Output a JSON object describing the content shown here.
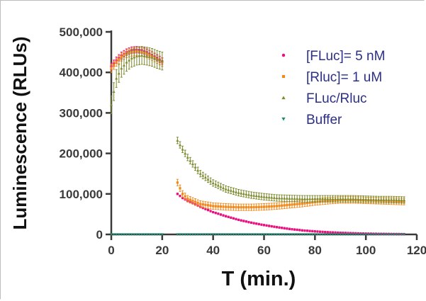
{
  "chart_data": {
    "type": "scatter",
    "title": "",
    "xlabel": "T (min.)",
    "ylabel": "Luminescence (RLUs)",
    "xlim": [
      0,
      120
    ],
    "ylim": [
      0,
      500000
    ],
    "x_ticks": [
      0,
      20,
      40,
      60,
      80,
      100,
      120
    ],
    "x_tick_labels": [
      "0",
      "20",
      "40",
      "60",
      "80",
      "100",
      "120"
    ],
    "y_ticks": [
      0,
      100000,
      200000,
      300000,
      400000,
      500000
    ],
    "y_tick_labels": [
      "0",
      "100,000",
      "200,000",
      "300,000",
      "400,000",
      "500,000"
    ],
    "grid": false,
    "legend_position": "top-right",
    "series": [
      {
        "name": "[FLuc]= 5 nM",
        "color": "#e8117f",
        "marker": "circle",
        "segments": [
          {
            "x": [
              0,
              2,
              4,
              6,
              8,
              10,
              12,
              14,
              16,
              18,
              20
            ],
            "y": [
              415000,
              430000,
              442000,
              450000,
              455000,
              456000,
              455000,
              450000,
              443000,
              436000,
              428000
            ],
            "err": 8000
          },
          {
            "x": [
              26,
              28,
              30,
              35,
              40,
              45,
              50,
              55,
              60,
              65,
              70,
              75,
              80,
              85,
              90,
              95,
              100,
              105,
              110,
              115
            ],
            "y": [
              100000,
              90000,
              83000,
              68000,
              55000,
              45000,
              36000,
              29000,
              23000,
              18000,
              13500,
              10000,
              7500,
              5500,
              4000,
              3000,
              2000,
              1500,
              1000,
              800
            ],
            "err": 2000
          }
        ]
      },
      {
        "name": "[Rluc]= 1 uM",
        "color": "#f08a1c",
        "marker": "square",
        "segments": [
          {
            "x": [
              0,
              2,
              4,
              6,
              8,
              10,
              12,
              14,
              16,
              18,
              20
            ],
            "y": [
              410000,
              425000,
              438000,
              446000,
              450000,
              452000,
              450000,
              446000,
              440000,
              432000,
              425000
            ],
            "err": 10000
          },
          {
            "x": [
              26,
              28,
              30,
              35,
              40,
              45,
              50,
              55,
              60,
              65,
              70,
              75,
              80,
              85,
              90,
              95,
              100,
              105,
              110,
              115
            ],
            "y": [
              128000,
              100000,
              88000,
              75000,
              70000,
              68000,
              67000,
              67000,
              68000,
              70000,
              73000,
              76000,
              80000,
              83000,
              85000,
              85000,
              84000,
              83000,
              82000,
              81000
            ],
            "err": 8000
          }
        ]
      },
      {
        "name": "FLuc/Rluc",
        "color": "#7d8a2e",
        "marker": "triangle",
        "segments": [
          {
            "x": [
              0,
              2,
              4,
              6,
              8,
              10,
              12,
              14,
              16,
              18,
              20
            ],
            "y": [
              320000,
              385000,
              410000,
              425000,
              435000,
              440000,
              442000,
              440000,
              437000,
              432000,
              428000
            ],
            "err": 22000
          },
          {
            "x": [
              26,
              28,
              30,
              35,
              40,
              45,
              50,
              55,
              60,
              65,
              70,
              75,
              80,
              85,
              90,
              95,
              100,
              105,
              110,
              115
            ],
            "y": [
              232000,
              210000,
              190000,
              150000,
              127000,
              112000,
              103000,
              97000,
              93000,
              90000,
              89000,
              88000,
              88000,
              88000,
              88000,
              88000,
              87000,
              86000,
              86000,
              85000
            ],
            "err": 8000
          }
        ]
      },
      {
        "name": "Buffer",
        "color": "#1e8a72",
        "marker": "triangle-down",
        "segments": [
          {
            "x": [
              0,
              2,
              4,
              6,
              8,
              10,
              12,
              14,
              16,
              18,
              20
            ],
            "y": [
              0,
              0,
              0,
              0,
              0,
              0,
              0,
              0,
              0,
              0,
              0
            ],
            "err": 0
          },
          {
            "x": [
              26,
              30,
              35,
              40,
              45,
              50,
              55,
              60,
              65,
              70,
              75,
              80,
              85,
              90,
              95,
              100,
              105,
              110,
              115
            ],
            "y": [
              0,
              0,
              0,
              0,
              0,
              0,
              0,
              0,
              0,
              0,
              0,
              0,
              0,
              0,
              0,
              0,
              0,
              0,
              0
            ],
            "err": 0
          }
        ]
      }
    ]
  }
}
